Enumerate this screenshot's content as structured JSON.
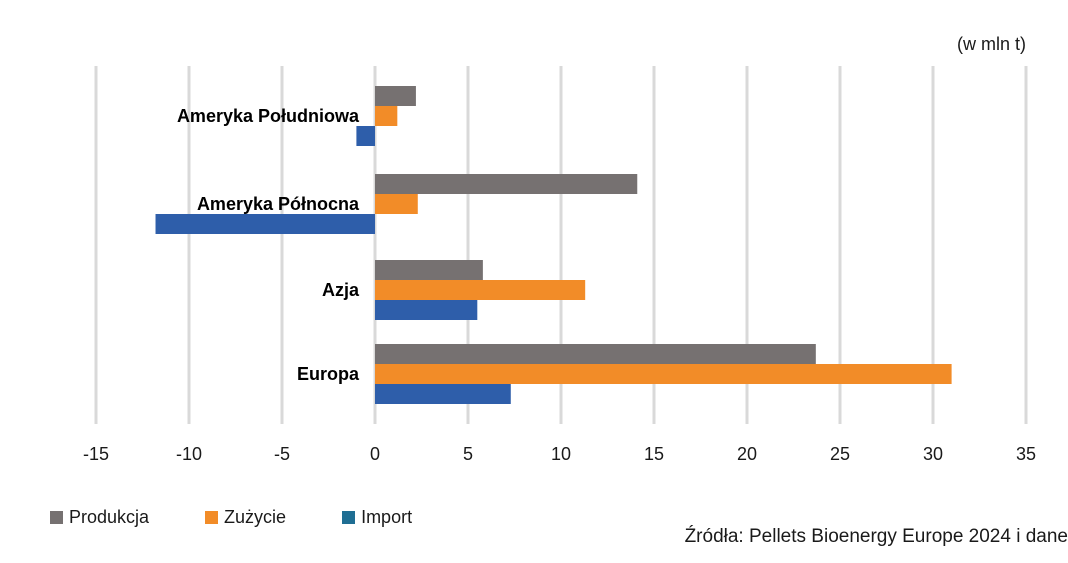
{
  "chart_data": {
    "type": "bar",
    "orientation": "horizontal",
    "unit_label": "(w mln t)",
    "categories": [
      "Ameryka Południowa",
      "Ameryka Północna",
      "Azja",
      "Europa"
    ],
    "series": [
      {
        "name": "Produkcja",
        "color": "#767171",
        "values": [
          2.2,
          14.1,
          5.8,
          23.7
        ]
      },
      {
        "name": "Zużycie",
        "color": "#F28C28",
        "values": [
          1.2,
          2.3,
          11.3,
          31.0
        ]
      },
      {
        "name": "Import",
        "color": "#2E5EAA",
        "values": [
          -1.0,
          -11.8,
          5.5,
          7.3
        ]
      }
    ],
    "xlim": [
      -15,
      35
    ],
    "xticks": [
      -15,
      -10,
      -5,
      0,
      5,
      10,
      15,
      20,
      25,
      30,
      35
    ],
    "grid": "vertical",
    "legend_position": "bottom-left",
    "source": "Źródła: Pellets Bioenergy Europe 2024 i dane"
  }
}
